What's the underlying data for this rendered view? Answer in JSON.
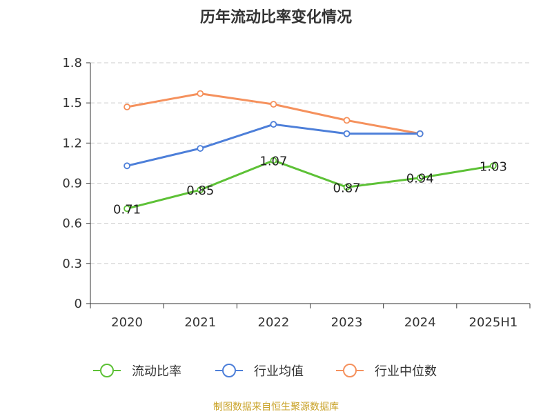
{
  "chart_data": {
    "type": "line",
    "title": "历年流动比率变化情况",
    "categories": [
      "2020",
      "2021",
      "2022",
      "2023",
      "2024",
      "2025H1"
    ],
    "ylim": [
      0,
      1.8
    ],
    "yticks": [
      "0",
      "0.3",
      "0.6",
      "0.9",
      "1.2",
      "1.5",
      "1.8"
    ],
    "grid": true,
    "legend_position": "bottom",
    "series": [
      {
        "name": "流动比率",
        "color": "#5dc136",
        "values": [
          0.71,
          0.85,
          1.07,
          0.87,
          0.94,
          1.03
        ],
        "labels": [
          "0.71",
          "0.85",
          "1.07",
          "0.87",
          "0.94",
          "1.03"
        ]
      },
      {
        "name": "行业均值",
        "color": "#4d7fd9",
        "values": [
          1.03,
          1.16,
          1.34,
          1.27,
          1.27,
          null
        ]
      },
      {
        "name": "行业中位数",
        "color": "#f5915d",
        "values": [
          1.47,
          1.57,
          1.49,
          1.37,
          1.27,
          null
        ]
      }
    ],
    "source": "制图数据来自恒生聚源数据库",
    "source_color": "#c9a227"
  }
}
